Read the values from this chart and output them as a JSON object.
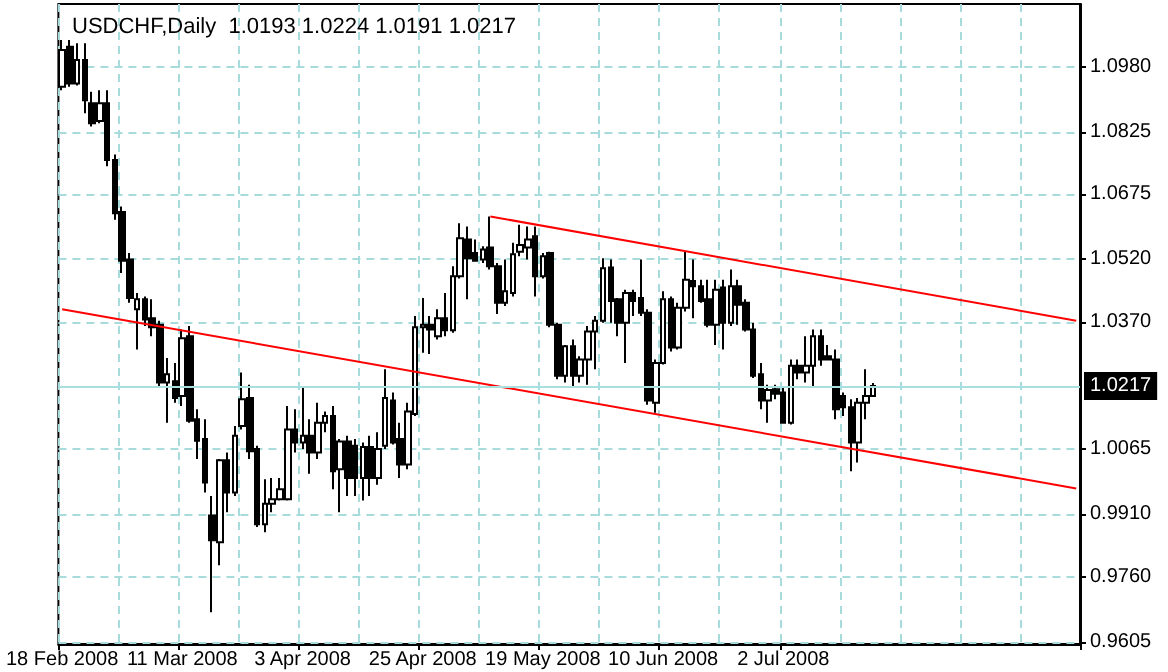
{
  "chart_data": {
    "type": "candlestick",
    "title": "USDCHF,Daily  1.0193 1.0224 1.0191 1.0217",
    "color": "#000000",
    "categories": [
      "18 Feb 2008",
      null,
      null,
      null,
      null,
      null,
      null,
      null,
      null,
      null,
      null,
      null,
      null,
      null,
      null,
      null,
      "11 Mar 2008",
      null,
      null,
      null,
      null,
      null,
      null,
      null,
      null,
      null,
      null,
      null,
      null,
      null,
      null,
      null,
      "3 Apr 2008",
      null,
      null,
      null,
      null,
      null,
      null,
      null,
      null,
      null,
      null,
      null,
      null,
      null,
      null,
      null,
      "25 Apr 2008",
      null,
      null,
      null,
      null,
      null,
      null,
      null,
      null,
      null,
      null,
      null,
      null,
      null,
      null,
      null,
      "19 May 2008",
      null,
      null,
      null,
      null,
      null,
      null,
      null,
      null,
      null,
      null,
      null,
      null,
      null,
      null,
      null,
      "10 Jun 2008",
      null,
      null,
      null,
      null,
      null,
      null,
      null,
      null,
      null,
      null,
      null,
      null,
      null,
      null,
      null,
      "2 Jul 2008",
      null,
      null,
      null,
      null,
      null,
      null,
      null,
      null,
      null,
      null,
      null,
      null,
      null,
      null,
      null,
      null,
      null,
      null,
      null,
      null,
      null,
      null,
      null,
      null,
      null,
      null,
      null,
      null,
      null,
      null,
      null,
      null,
      null,
      null,
      null,
      null,
      null,
      null,
      null
    ],
    "ohlc": [
      [
        1.0932,
        1.1044,
        1.0924,
        1.102
      ],
      [
        1.1028,
        1.1044,
        1.0932,
        1.094
      ],
      [
        1.094,
        1.1036,
        1.0935,
        1.0996
      ],
      [
        1.0996,
        1.1036,
        1.0869,
        1.09
      ],
      [
        1.0893,
        1.092,
        1.0837,
        1.0845
      ],
      [
        1.085,
        1.0924,
        1.0845,
        1.0893
      ],
      [
        1.0893,
        1.0924,
        1.0742,
        1.0757
      ],
      [
        1.0757,
        1.077,
        1.0614,
        1.063
      ],
      [
        1.0633,
        1.0646,
        1.0487,
        1.0516
      ],
      [
        1.0519,
        1.0535,
        1.0416,
        1.0427
      ],
      [
        1.04,
        1.0439,
        1.0304,
        1.0424
      ],
      [
        1.0424,
        1.0431,
        1.036,
        1.0376
      ],
      [
        1.0379,
        1.0424,
        1.0336,
        1.0357
      ],
      [
        1.0363,
        1.0373,
        1.0217,
        1.0225
      ],
      [
        1.0225,
        1.0284,
        1.0129,
        1.0245
      ],
      [
        1.0228,
        1.0272,
        1.0177,
        1.0188
      ],
      [
        1.0193,
        1.0352,
        1.0169,
        1.0331
      ],
      [
        1.0336,
        1.036,
        1.0129,
        1.0134
      ],
      [
        1.0137,
        1.0161,
        1.0042,
        1.0086
      ],
      [
        1.009,
        1.0137,
        0.9962,
        0.9986
      ],
      [
        0.9907,
        0.9954,
        0.9676,
        0.9848
      ],
      [
        0.9843,
        1.0042,
        0.9788,
        1.0039
      ],
      [
        1.0039,
        1.0058,
        0.9915,
        0.9962
      ],
      [
        0.9962,
        1.0121,
        0.9954,
        1.0098
      ],
      [
        1.0121,
        1.0249,
        1.0113,
        1.0185
      ],
      [
        1.0188,
        1.022,
        1.0042,
        1.0061
      ],
      [
        1.0066,
        1.0074,
        0.988,
        0.9886
      ],
      [
        0.9886,
        0.9994,
        0.9867,
        0.9935
      ],
      [
        0.9935,
        0.9997,
        0.9915,
        0.9946
      ],
      [
        0.9946,
        0.9997,
        0.9943,
        0.997
      ],
      [
        0.9946,
        1.0169,
        0.9943,
        1.0113
      ],
      [
        1.0113,
        1.0161,
        1.0058,
        1.0082
      ],
      [
        1.0082,
        1.0217,
        1.0066,
        1.0098
      ],
      [
        1.0098,
        1.0137,
        1.0007,
        1.0058
      ],
      [
        1.0058,
        1.0177,
        1.0042,
        1.0129
      ],
      [
        1.0129,
        1.0156,
        1.0106,
        1.0145
      ],
      [
        1.0145,
        1.0169,
        0.997,
        1.0013
      ],
      [
        1.0018,
        1.009,
        0.9915,
        1.0084
      ],
      [
        1.0084,
        1.0098,
        0.9954,
        0.9997
      ],
      [
        1.0074,
        1.009,
        0.9954,
        0.9997
      ],
      [
        0.9997,
        1.0082,
        0.9943,
        1.0071
      ],
      [
        1.0071,
        1.0098,
        0.9954,
        0.9997
      ],
      [
        0.9997,
        1.0106,
        0.9981,
        1.0066
      ],
      [
        1.0074,
        1.0257,
        1.0066,
        1.0188
      ],
      [
        1.0182,
        1.0201,
        1.0077,
        1.0082
      ],
      [
        1.009,
        1.0129,
        0.9997,
        1.0029
      ],
      [
        1.0029,
        1.0177,
        1.0018,
        1.0156
      ],
      [
        1.015,
        1.0384,
        1.0145,
        1.0357
      ],
      [
        1.0357,
        1.0427,
        1.0296,
        1.0363
      ],
      [
        1.0363,
        1.0384,
        1.0293,
        1.0352
      ],
      [
        1.0336,
        1.04,
        1.0328,
        1.0379
      ],
      [
        1.0379,
        1.0439,
        1.0336,
        1.035
      ],
      [
        1.035,
        1.0503,
        1.0344,
        1.0479
      ],
      [
        1.0479,
        1.0606,
        1.0474,
        1.057
      ],
      [
        1.0567,
        1.0598,
        1.0424,
        1.0522
      ],
      [
        1.0535,
        1.0567,
        1.0516,
        1.0516
      ],
      [
        1.0519,
        1.0551,
        1.0511,
        1.0543
      ],
      [
        1.0548,
        1.0622,
        1.0495,
        1.0503
      ],
      [
        1.0503,
        1.0511,
        1.0389,
        1.0416
      ],
      [
        1.0416,
        1.0519,
        1.0408,
        1.0443
      ],
      [
        1.0439,
        1.0559,
        1.0431,
        1.0532
      ],
      [
        1.0538,
        1.0602,
        1.0527,
        1.0554
      ],
      [
        1.0548,
        1.0598,
        1.0519,
        1.0567
      ],
      [
        1.0575,
        1.0598,
        1.0431,
        1.0479
      ],
      [
        1.0479,
        1.0535,
        1.0474,
        1.0527
      ],
      [
        1.0535,
        1.0538,
        1.0357,
        1.0363
      ],
      [
        1.0363,
        1.0368,
        1.0233,
        1.0241
      ],
      [
        1.0241,
        1.0315,
        1.0225,
        1.0312
      ],
      [
        1.0312,
        1.0328,
        1.0214,
        1.0241
      ],
      [
        1.0241,
        1.0288,
        1.0225,
        1.028
      ],
      [
        1.028,
        1.036,
        1.022,
        1.0347
      ],
      [
        1.0347,
        1.0384,
        1.0257,
        1.0373
      ],
      [
        1.0373,
        1.0522,
        1.0368,
        1.0498
      ],
      [
        1.05,
        1.0519,
        1.0368,
        1.042
      ],
      [
        1.0424,
        1.0427,
        1.0336,
        1.0368
      ],
      [
        1.0368,
        1.0447,
        1.0272,
        1.0439
      ],
      [
        1.0439,
        1.0447,
        1.0384,
        1.042
      ],
      [
        1.0427,
        1.0519,
        1.0384,
        1.0392
      ],
      [
        1.0392,
        1.04,
        1.0172,
        1.0182
      ],
      [
        1.0177,
        1.028,
        1.0153,
        1.0272
      ],
      [
        1.0272,
        1.0443,
        1.0268,
        1.0424
      ],
      [
        1.0424,
        1.0431,
        1.0299,
        1.0309
      ],
      [
        1.0309,
        1.0416,
        1.0304,
        1.0404
      ],
      [
        1.0404,
        1.0538,
        1.0395,
        1.0471
      ],
      [
        1.0468,
        1.0519,
        1.0379,
        1.0455
      ],
      [
        1.0455,
        1.0471,
        1.0416,
        1.042
      ],
      [
        1.0424,
        1.0471,
        1.0357,
        1.0363
      ],
      [
        1.0363,
        1.0471,
        1.0315,
        1.0447
      ],
      [
        1.0452,
        1.0471,
        1.0304,
        1.0368
      ],
      [
        1.0368,
        1.0495,
        1.036,
        1.0455
      ],
      [
        1.0455,
        1.0471,
        1.0363,
        1.0411
      ],
      [
        1.0416,
        1.0424,
        1.0347,
        1.0352
      ],
      [
        1.0352,
        1.0368,
        1.0236,
        1.0241
      ],
      [
        1.0245,
        1.0272,
        1.0161,
        1.0182
      ],
      [
        1.0182,
        1.022,
        1.0129,
        1.0207
      ],
      [
        1.0209,
        1.022,
        1.0185,
        1.0198
      ],
      [
        1.0201,
        1.0217,
        1.0128,
        1.0129
      ],
      [
        1.0129,
        1.028,
        1.0125,
        1.0265
      ],
      [
        1.0265,
        1.028,
        1.0233,
        1.0249
      ],
      [
        1.0249,
        1.0336,
        1.0225,
        1.0265
      ],
      [
        1.0265,
        1.0352,
        1.0217,
        1.0336
      ],
      [
        1.0336,
        1.0352,
        1.0265,
        1.028
      ],
      [
        1.0288,
        1.0315,
        1.028,
        1.028
      ],
      [
        1.028,
        1.0304,
        1.0137,
        1.0161
      ],
      [
        1.0193,
        1.0201,
        1.0145,
        1.0166
      ],
      [
        1.0166,
        1.0185,
        1.0013,
        1.0082
      ],
      [
        1.0082,
        1.0188,
        1.0034,
        1.0177
      ],
      [
        1.0177,
        1.0257,
        1.0137,
        1.0193
      ],
      [
        1.0193,
        1.0224,
        1.0191,
        1.0217
      ],
      null,
      null,
      null,
      null,
      null,
      null,
      null,
      null,
      null,
      null,
      null,
      null,
      null,
      null,
      null,
      null,
      null,
      null,
      null,
      null,
      null,
      null,
      null,
      null,
      null,
      null,
      null
    ],
    "series": [
      {
        "type": "line",
        "color": "#ff0000",
        "values": [
          1.04,
          null,
          null,
          null,
          null,
          null,
          null,
          null,
          null,
          null,
          null,
          null,
          null,
          null,
          null,
          null,
          null,
          null,
          null,
          null,
          null,
          null,
          null,
          null,
          null,
          null,
          null,
          null,
          null,
          null,
          null,
          null,
          null,
          null,
          null,
          null,
          null,
          null,
          null,
          null,
          null,
          null,
          null,
          null,
          null,
          null,
          null,
          null,
          null,
          null,
          null,
          null,
          null,
          null,
          null,
          null,
          null,
          null,
          null,
          null,
          null,
          null,
          null,
          null,
          null,
          null,
          null,
          null,
          null,
          null,
          null,
          null,
          null,
          null,
          null,
          null,
          null,
          null,
          null,
          null,
          null,
          null,
          null,
          null,
          null,
          null,
          null,
          null,
          null,
          null,
          null,
          null,
          null,
          null,
          null,
          null,
          null,
          null,
          null,
          null,
          null,
          null,
          null,
          null,
          null,
          null,
          null,
          null,
          null,
          null,
          null,
          null,
          null,
          null,
          null,
          null,
          null,
          null,
          null,
          null,
          null,
          null,
          null,
          null,
          null,
          null,
          null,
          null,
          null,
          null,
          null,
          null,
          null,
          null,
          null,
          0.9972
        ]
      },
      {
        "type": "line",
        "color": "#ff0000",
        "values": [
          null,
          null,
          null,
          null,
          null,
          null,
          null,
          null,
          null,
          null,
          null,
          null,
          null,
          null,
          null,
          null,
          null,
          null,
          null,
          null,
          null,
          null,
          null,
          null,
          null,
          null,
          null,
          null,
          null,
          null,
          null,
          null,
          null,
          null,
          null,
          null,
          null,
          null,
          null,
          null,
          null,
          null,
          null,
          null,
          null,
          null,
          null,
          null,
          null,
          null,
          null,
          null,
          null,
          null,
          null,
          null,
          null,
          1.0622,
          null,
          null,
          null,
          null,
          null,
          null,
          null,
          null,
          null,
          null,
          null,
          null,
          null,
          null,
          null,
          null,
          null,
          null,
          null,
          null,
          null,
          null,
          null,
          null,
          null,
          null,
          null,
          null,
          null,
          null,
          null,
          null,
          null,
          null,
          null,
          null,
          null,
          null,
          null,
          null,
          null,
          null,
          null,
          null,
          null,
          null,
          null,
          null,
          null,
          null,
          null,
          null,
          null,
          null,
          null,
          null,
          null,
          null,
          null,
          null,
          null,
          null,
          null,
          null,
          null,
          null,
          null,
          null,
          null,
          null,
          null,
          null,
          null,
          null,
          null,
          null,
          null,
          1.0373
        ]
      }
    ],
    "ylim": [
      0.96,
      1.113
    ],
    "yticks": [
      {
        "value": 0.9605,
        "label": "0.9605"
      },
      {
        "value": 0.976,
        "label": "0.9760"
      },
      {
        "value": 0.991,
        "label": "0.9910"
      },
      {
        "value": 1.0065,
        "label": "1.0065"
      },
      {
        "value": 1.037,
        "label": "1.0370"
      },
      {
        "value": 1.052,
        "label": "1.0520"
      },
      {
        "value": 1.0675,
        "label": "1.0675"
      },
      {
        "value": 1.0825,
        "label": "1.0825"
      },
      {
        "value": 1.098,
        "label": "1.0980"
      }
    ],
    "ref_lines": [
      {
        "axis": "y",
        "value": 1.0217,
        "label": "1.0217",
        "color": "#a8e0e0"
      }
    ],
    "grid": true
  }
}
